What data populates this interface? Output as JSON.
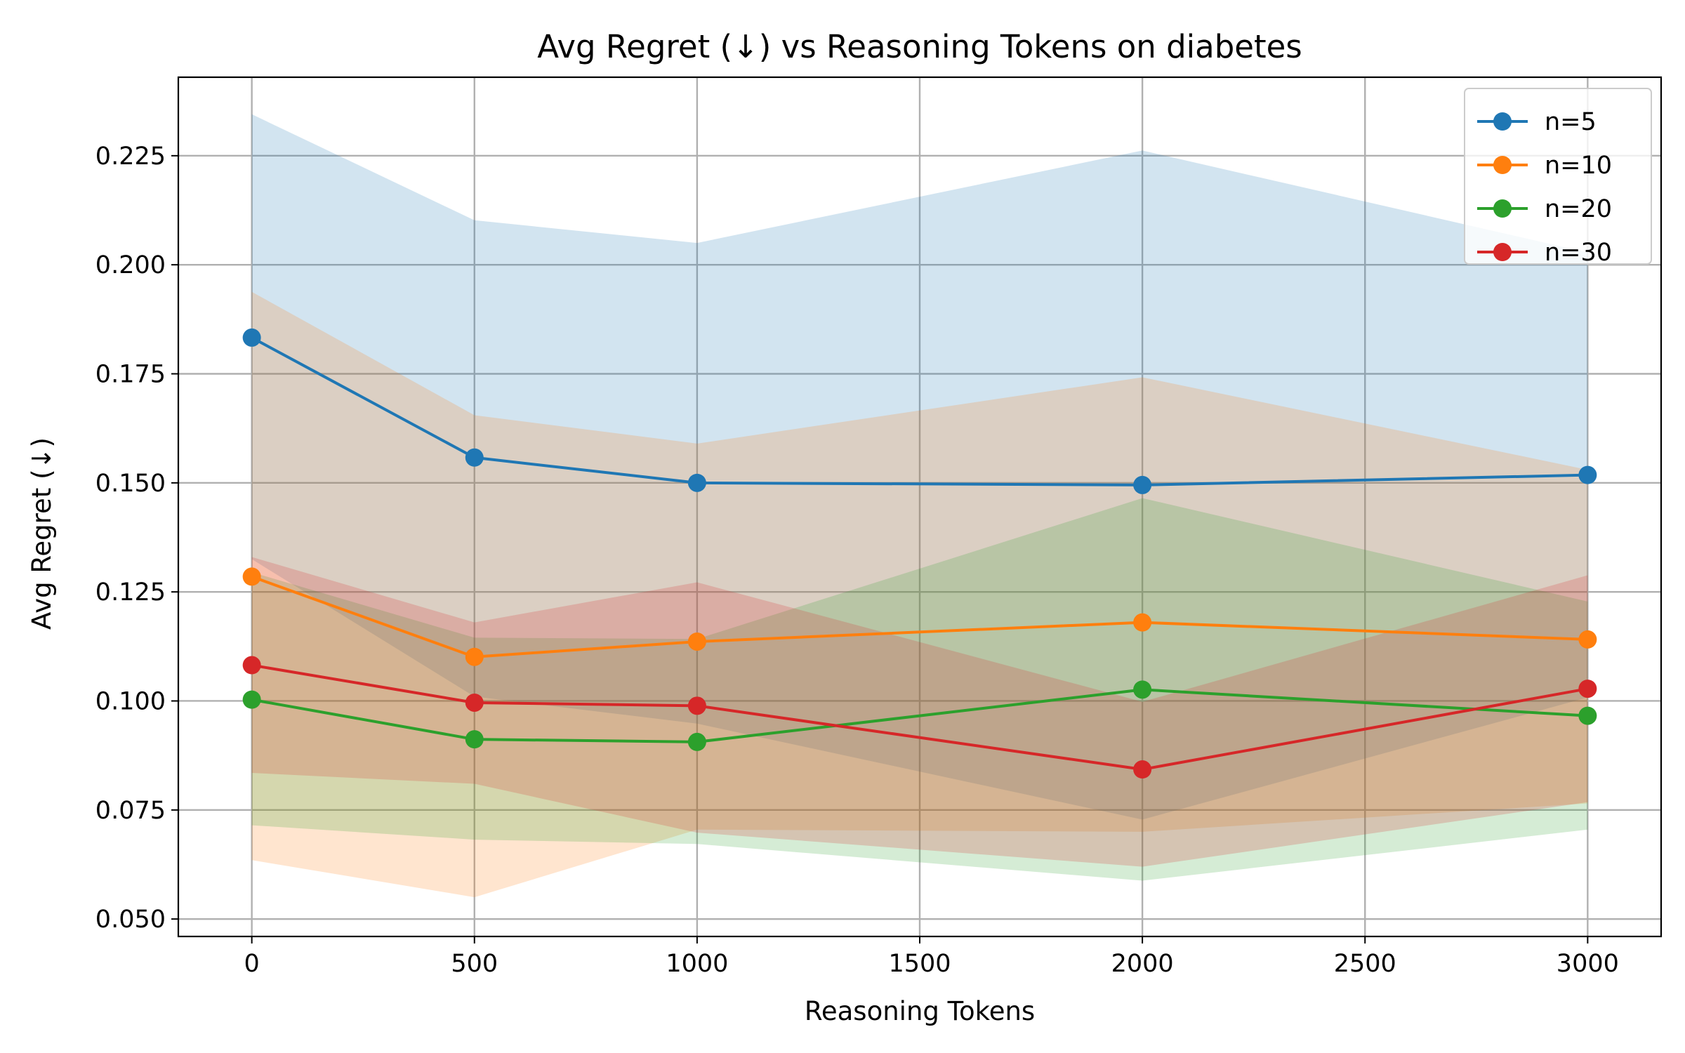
{
  "chart_data": {
    "type": "line",
    "title": "Avg Regret (↓) vs Reasoning Tokens on diabetes",
    "xlabel": "Reasoning Tokens",
    "ylabel": "Avg Regret (↓)",
    "x": [
      0,
      500,
      1000,
      2000,
      3000
    ],
    "xlim": [
      -165,
      3165
    ],
    "ylim": [
      0.046,
      0.243
    ],
    "xticks": [
      0,
      500,
      1000,
      1500,
      2000,
      2500,
      3000
    ],
    "xtick_labels": [
      "0",
      "500",
      "1000",
      "1500",
      "2000",
      "2500",
      "3000"
    ],
    "yticks": [
      0.05,
      0.075,
      0.1,
      0.125,
      0.15,
      0.175,
      0.2,
      0.225
    ],
    "ytick_labels": [
      "0.050",
      "0.075",
      "0.100",
      "0.125",
      "0.150",
      "0.175",
      "0.200",
      "0.225"
    ],
    "grid": true,
    "legend_position": "top-right",
    "series": [
      {
        "name": "n=5",
        "color": "#1f77b4",
        "values": [
          0.1833,
          0.1558,
          0.15,
          0.1495,
          0.1518
        ],
        "lower": [
          0.1325,
          0.101,
          0.0948,
          0.0728,
          0.1008
        ],
        "upper": [
          0.2345,
          0.2102,
          0.205,
          0.2262,
          0.2028
        ]
      },
      {
        "name": "n=10",
        "color": "#ff7f0e",
        "values": [
          0.1285,
          0.1101,
          0.1136,
          0.118,
          0.1141
        ],
        "lower": [
          0.0635,
          0.055,
          0.0705,
          0.07,
          0.0765
        ],
        "upper": [
          0.1938,
          0.1655,
          0.159,
          0.1742,
          0.153
        ]
      },
      {
        "name": "n=20",
        "color": "#2ca02c",
        "values": [
          0.1003,
          0.0912,
          0.0906,
          0.1026,
          0.0966
        ],
        "lower": [
          0.0715,
          0.0682,
          0.0672,
          0.0588,
          0.0705
        ],
        "upper": [
          0.1295,
          0.1145,
          0.1142,
          0.1465,
          0.1228
        ]
      },
      {
        "name": "n=30",
        "color": "#d62728",
        "values": [
          0.1082,
          0.0996,
          0.0989,
          0.0843,
          0.1028
        ],
        "lower": [
          0.0835,
          0.081,
          0.0698,
          0.062,
          0.0768
        ],
        "upper": [
          0.133,
          0.118,
          0.1272,
          0.0998,
          0.1288
        ]
      }
    ]
  }
}
